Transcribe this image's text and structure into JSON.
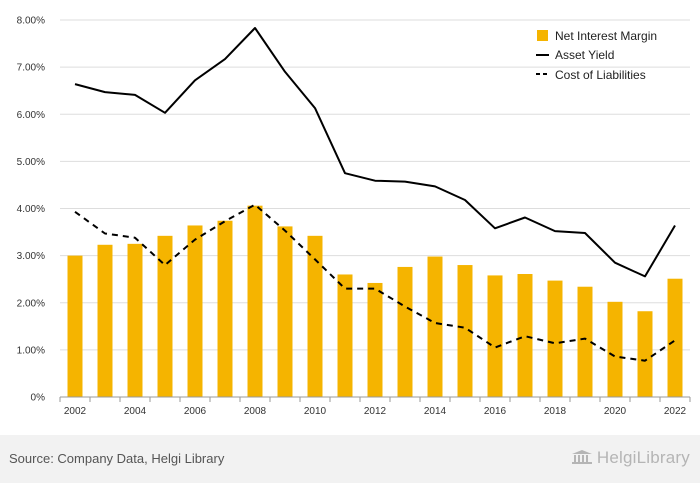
{
  "chart_data": {
    "type": "bar+line",
    "title": "",
    "xlabel": "",
    "ylabel": "",
    "ylim": [
      0,
      8
    ],
    "yticks": [
      "0%",
      "1.00%",
      "2.00%",
      "3.00%",
      "4.00%",
      "5.00%",
      "6.00%",
      "7.00%",
      "8.00%"
    ],
    "x": [
      2002,
      2003,
      2004,
      2005,
      2006,
      2007,
      2008,
      2009,
      2010,
      2011,
      2012,
      2013,
      2014,
      2015,
      2016,
      2017,
      2018,
      2019,
      2020,
      2021,
      2022
    ],
    "xticks": [
      "2002",
      "2004",
      "2006",
      "2008",
      "2010",
      "2012",
      "2014",
      "2016",
      "2018",
      "2020",
      "2022"
    ],
    "grid": true,
    "legend_position": "top-right",
    "series": [
      {
        "name": "Net Interest Margin",
        "kind": "bar",
        "color": "#F5B400",
        "values": [
          3.0,
          3.23,
          3.25,
          3.42,
          3.64,
          3.74,
          4.06,
          3.62,
          3.42,
          2.6,
          2.42,
          2.76,
          2.98,
          2.8,
          2.58,
          2.61,
          2.47,
          2.34,
          2.02,
          1.82,
          2.51
        ]
      },
      {
        "name": "Asset Yield",
        "kind": "line",
        "color": "#000000",
        "values": [
          6.64,
          6.47,
          6.41,
          6.03,
          6.72,
          7.17,
          7.83,
          6.9,
          6.13,
          4.75,
          4.59,
          4.57,
          4.47,
          4.18,
          3.58,
          3.81,
          3.52,
          3.48,
          2.85,
          2.56,
          3.64
        ]
      },
      {
        "name": "Cost of Liabilities",
        "kind": "line-dashed",
        "color": "#000000",
        "values": [
          3.93,
          3.47,
          3.38,
          2.8,
          3.34,
          3.73,
          4.08,
          3.53,
          2.92,
          2.3,
          2.3,
          1.92,
          1.57,
          1.47,
          1.05,
          1.29,
          1.14,
          1.24,
          0.86,
          0.77,
          1.2
        ]
      }
    ]
  },
  "footer": {
    "source": "Source: Company Data, Helgi Library",
    "brand": "HelgiLibrary"
  }
}
